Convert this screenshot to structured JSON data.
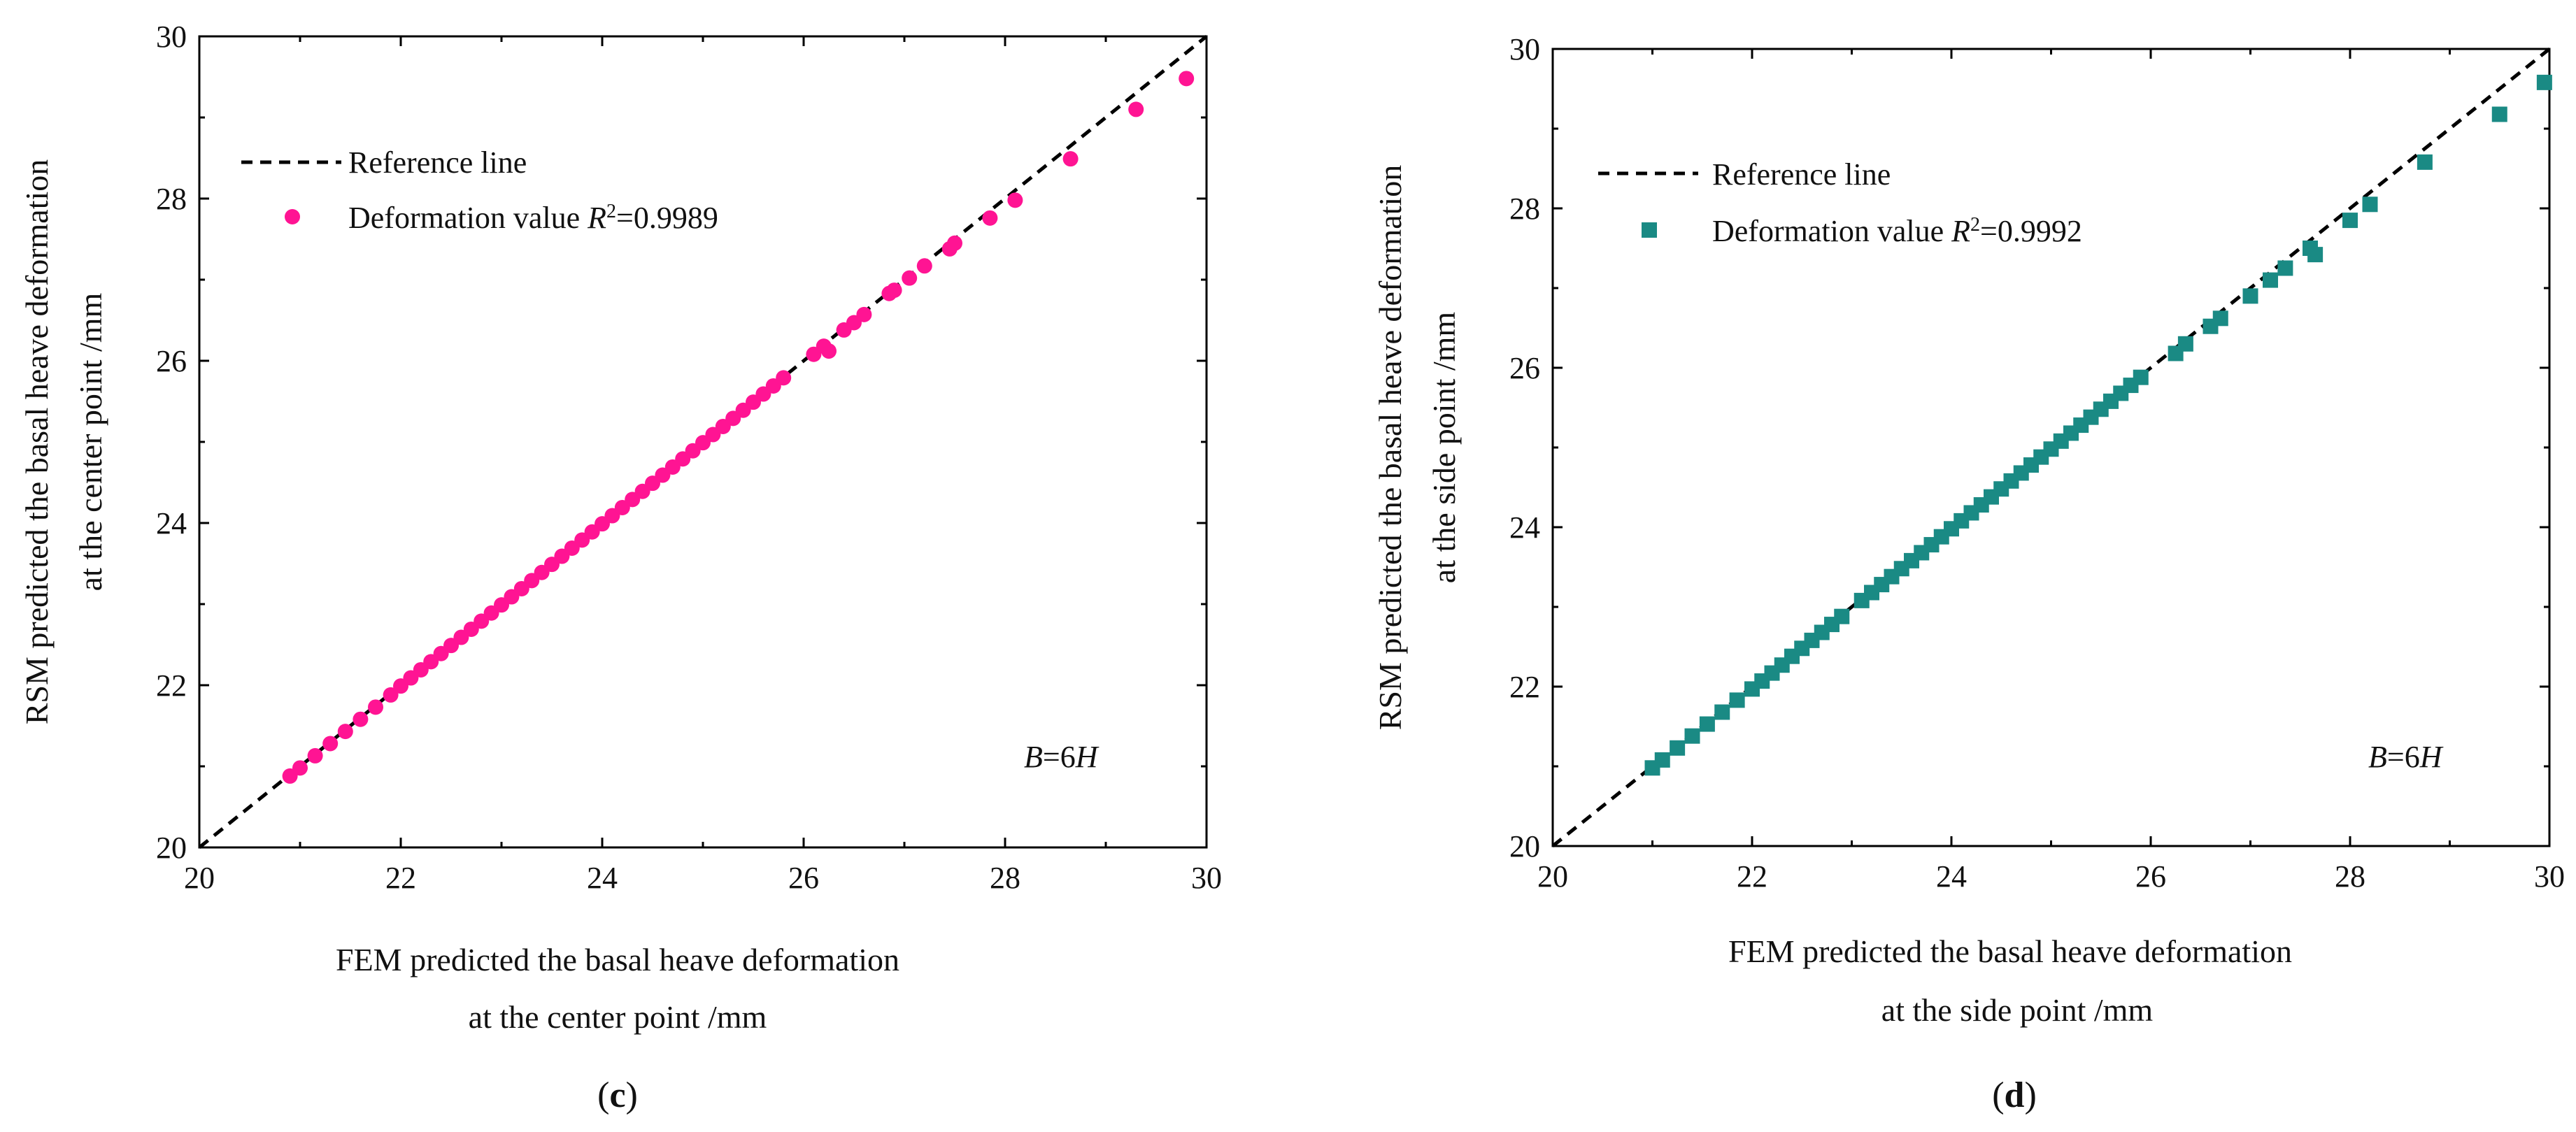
{
  "figure": {
    "panels": [
      "c",
      "d"
    ]
  },
  "chart_data": [
    {
      "type": "scatter",
      "panel_label": "c",
      "xlabel_line1": "FEM predicted the basal heave deformation",
      "xlabel_line2": "at the center point /mm",
      "ylabel_line1": "RSM predicted the basal heave deformation",
      "ylabel_line2": "at the center point /mm",
      "xlim": [
        20,
        30
      ],
      "ylim": [
        20,
        30
      ],
      "xticks": [
        20,
        22,
        24,
        26,
        28,
        30
      ],
      "yticks": [
        20,
        22,
        24,
        26,
        28,
        30
      ],
      "legend_position": "top-left",
      "reference_label": "Reference line",
      "series_label_prefix": "Deformation value ",
      "r2_symbol": "R",
      "r2_superscript": "2",
      "r2_value": "=0.9989",
      "annotation_prefix": "B",
      "annotation_mid": "=6",
      "annotation_suffix": "H",
      "marker": "circle",
      "color": "#ff1493",
      "points": {
        "x": [
          20.9,
          21.0,
          21.15,
          21.3,
          21.45,
          21.6,
          21.75,
          21.9,
          22.0,
          22.1,
          22.2,
          22.3,
          22.4,
          22.5,
          22.6,
          22.7,
          22.8,
          22.9,
          23.0,
          23.1,
          23.2,
          23.3,
          23.4,
          23.5,
          23.6,
          23.7,
          23.8,
          23.9,
          24.0,
          24.1,
          24.2,
          24.3,
          24.4,
          24.5,
          24.6,
          24.7,
          24.8,
          24.9,
          25.0,
          25.1,
          25.2,
          25.3,
          25.4,
          25.5,
          25.6,
          25.7,
          25.8,
          26.1,
          26.2,
          26.25,
          26.4,
          26.5,
          26.6,
          26.85,
          26.9,
          27.05,
          27.2,
          27.45,
          27.5,
          27.85,
          28.1,
          28.65,
          29.3,
          29.8
        ],
        "y": [
          20.88,
          20.98,
          21.13,
          21.28,
          21.43,
          21.58,
          21.73,
          21.88,
          21.99,
          22.09,
          22.19,
          22.29,
          22.39,
          22.49,
          22.59,
          22.69,
          22.79,
          22.89,
          22.99,
          23.09,
          23.19,
          23.29,
          23.39,
          23.49,
          23.59,
          23.69,
          23.79,
          23.89,
          23.99,
          24.09,
          24.19,
          24.29,
          24.39,
          24.49,
          24.59,
          24.69,
          24.79,
          24.89,
          24.99,
          25.09,
          25.19,
          25.29,
          25.39,
          25.49,
          25.59,
          25.69,
          25.79,
          26.08,
          26.18,
          26.12,
          26.38,
          26.47,
          26.57,
          26.83,
          26.87,
          27.02,
          27.17,
          27.38,
          27.45,
          27.76,
          27.98,
          28.49,
          29.1,
          29.48
        ]
      }
    },
    {
      "type": "scatter",
      "panel_label": "d",
      "xlabel_line1": "FEM predicted the basal heave deformation",
      "xlabel_line2": "at the side point /mm",
      "ylabel_line1": "RSM predicted the basal heave deformation",
      "ylabel_line2": "at the side point /mm",
      "xlim": [
        20,
        30
      ],
      "ylim": [
        20,
        30
      ],
      "xticks": [
        20,
        22,
        24,
        26,
        28,
        30
      ],
      "yticks": [
        20,
        22,
        24,
        26,
        28,
        30
      ],
      "legend_position": "top-left",
      "reference_label": "Reference line",
      "series_label_prefix": "Deformation value ",
      "r2_symbol": "R",
      "r2_superscript": "2",
      "r2_value": "=0.9992",
      "annotation_prefix": "B",
      "annotation_mid": "=6",
      "annotation_suffix": "H",
      "marker": "square",
      "color": "#1a8a84",
      "points": {
        "x": [
          21.0,
          21.1,
          21.25,
          21.4,
          21.55,
          21.7,
          21.85,
          22.0,
          22.1,
          22.2,
          22.3,
          22.4,
          22.5,
          22.6,
          22.7,
          22.8,
          22.9,
          23.1,
          23.2,
          23.3,
          23.4,
          23.5,
          23.6,
          23.7,
          23.8,
          23.9,
          24.0,
          24.1,
          24.2,
          24.3,
          24.4,
          24.5,
          24.6,
          24.7,
          24.8,
          24.9,
          25.0,
          25.1,
          25.2,
          25.3,
          25.4,
          25.5,
          25.6,
          25.7,
          25.8,
          25.9,
          26.25,
          26.35,
          26.6,
          26.7,
          27.0,
          27.2,
          27.35,
          27.6,
          27.65,
          28.0,
          28.2,
          28.75,
          29.5,
          29.95
        ],
        "y": [
          20.98,
          21.08,
          21.23,
          21.38,
          21.53,
          21.68,
          21.83,
          21.97,
          22.07,
          22.17,
          22.27,
          22.38,
          22.48,
          22.58,
          22.68,
          22.78,
          22.88,
          23.08,
          23.18,
          23.28,
          23.38,
          23.48,
          23.58,
          23.68,
          23.78,
          23.88,
          23.98,
          24.08,
          24.18,
          24.28,
          24.38,
          24.48,
          24.58,
          24.68,
          24.78,
          24.88,
          24.98,
          25.08,
          25.18,
          25.28,
          25.38,
          25.48,
          25.58,
          25.68,
          25.78,
          25.88,
          26.18,
          26.3,
          26.52,
          26.62,
          26.9,
          27.1,
          27.25,
          27.5,
          27.42,
          27.85,
          28.05,
          28.58,
          29.18,
          29.58
        ]
      }
    }
  ]
}
